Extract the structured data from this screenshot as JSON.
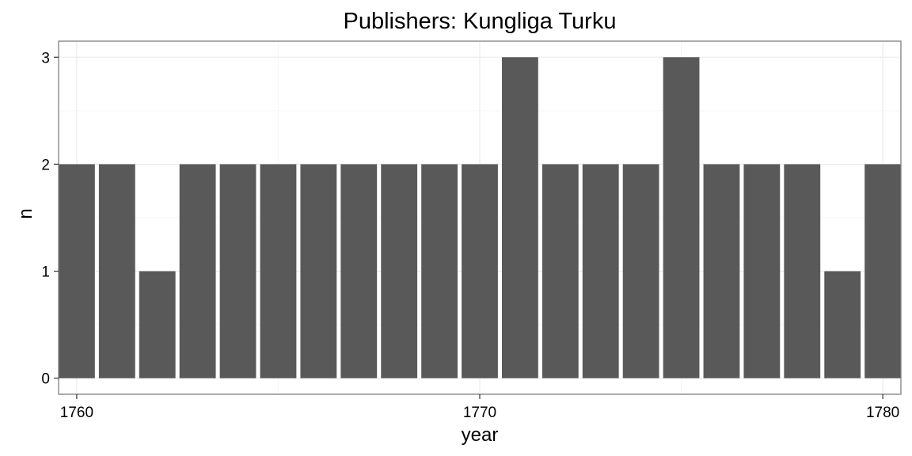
{
  "chart_data": {
    "type": "bar",
    "title": "Publishers: Kungliga Turku",
    "xlabel": "year",
    "ylabel": "n",
    "x": [
      1760,
      1761,
      1762,
      1763,
      1764,
      1765,
      1766,
      1767,
      1768,
      1769,
      1770,
      1771,
      1772,
      1773,
      1774,
      1775,
      1776,
      1777,
      1778,
      1779,
      1780
    ],
    "values": [
      2,
      2,
      1,
      2,
      2,
      2,
      2,
      2,
      2,
      2,
      2,
      3,
      2,
      2,
      2,
      3,
      2,
      2,
      2,
      1,
      2
    ],
    "xticks": [
      "1760",
      "1770",
      "1780"
    ],
    "yticks": [
      "0",
      "1",
      "2",
      "3"
    ],
    "xlim": [
      1759.55,
      1780.45
    ],
    "ylim": [
      -0.15,
      3.15
    ],
    "grid": true,
    "colors": {
      "bar": "#595959",
      "grid_major": "#ebebeb",
      "grid_minor": "#f5f5f5",
      "panel_border": "#7f7f7f"
    }
  }
}
